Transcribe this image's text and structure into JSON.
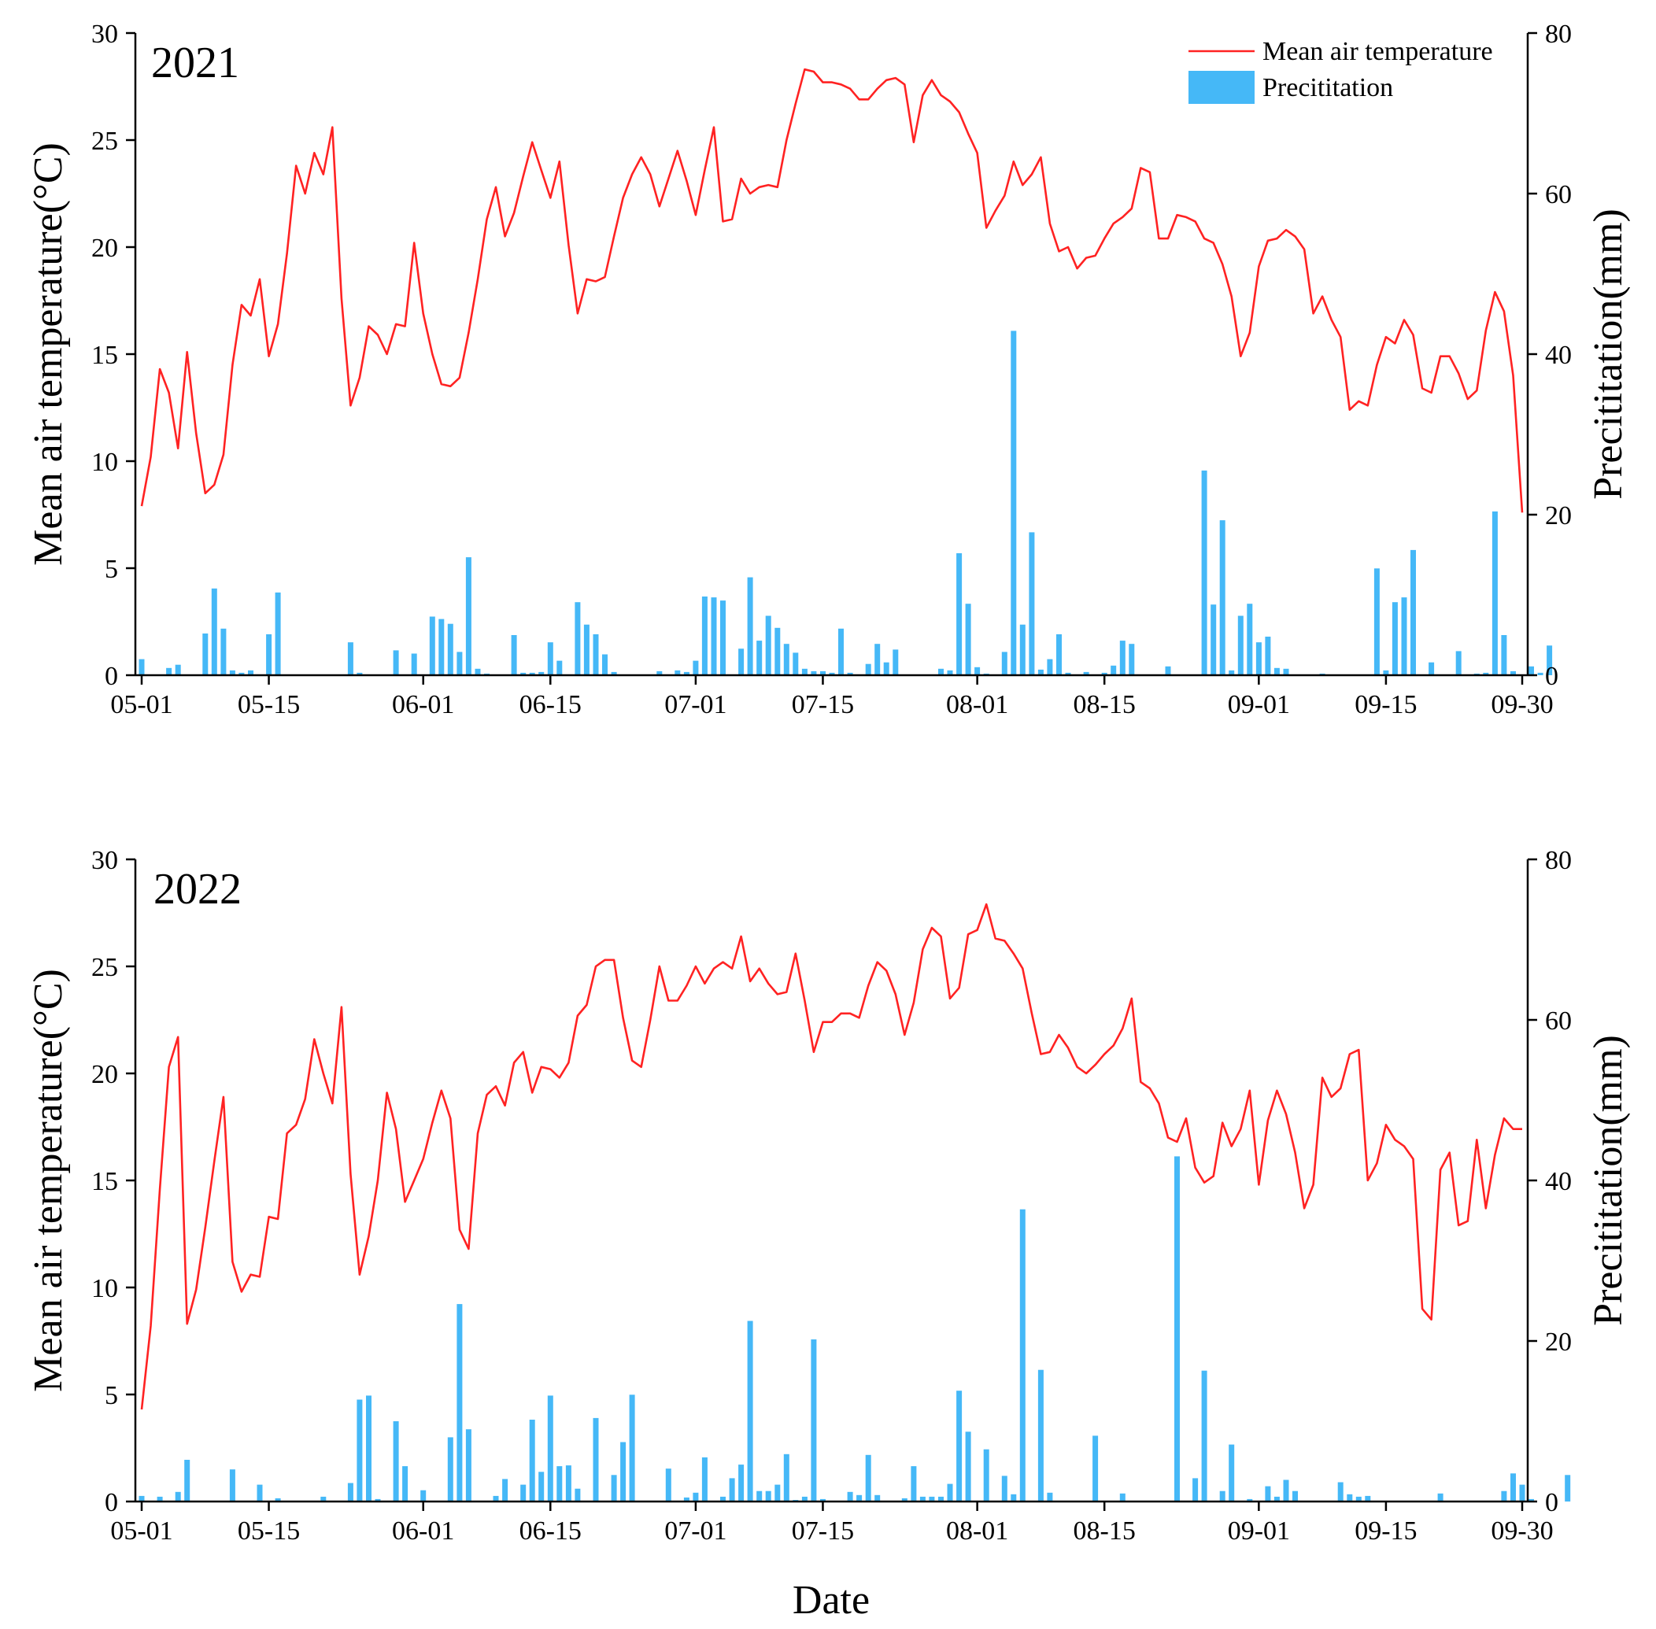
{
  "xlabel": "Date",
  "colors": {
    "temperature": "#ff2222",
    "precipitation": "#45b8f7",
    "axis": "#000000"
  },
  "chart_data": [
    {
      "type": "line+bar",
      "title": "2021",
      "xlabel": "Date",
      "ylabel_left": "Mean air temperature(°C)",
      "ylabel_right": "Precititation(mm)",
      "ylim_left": [
        0,
        30
      ],
      "ylim_right": [
        0,
        80
      ],
      "y_ticks_left": [
        "0",
        "5",
        "10",
        "15",
        "20",
        "25",
        "30"
      ],
      "y_ticks_right": [
        "0",
        "20",
        "40",
        "60",
        "80"
      ],
      "x_tick_labels": [
        "05-01",
        "05-15",
        "06-01",
        "06-15",
        "07-01",
        "07-15",
        "08-01",
        "08-15",
        "09-01",
        "09-15",
        "09-30"
      ],
      "legend": [
        "Mean air temperature",
        "Precititation"
      ],
      "day_start": "05-01",
      "n_days": 153,
      "series": [
        {
          "name": "Mean air temperature",
          "kind": "line",
          "axis": "left",
          "values": [
            7.9,
            10.2,
            14.3,
            13.2,
            10.6,
            15.1,
            11.3,
            8.5,
            8.9,
            10.3,
            14.5,
            17.3,
            16.8,
            18.5,
            14.9,
            16.4,
            19.7,
            23.8,
            22.5,
            24.4,
            23.4,
            25.6,
            17.6,
            12.6,
            13.9,
            16.3,
            15.9,
            15.0,
            16.4,
            16.3,
            20.2,
            16.9,
            15.0,
            13.6,
            13.5,
            13.9,
            16.0,
            18.5,
            21.3,
            22.8,
            20.5,
            21.6,
            23.3,
            24.9,
            23.6,
            22.3,
            24.0,
            20.1,
            16.9,
            18.5,
            18.4,
            18.6,
            20.5,
            22.3,
            23.4,
            24.2,
            23.4,
            21.9,
            23.2,
            24.5,
            23.1,
            21.5,
            23.6,
            25.6,
            21.2,
            21.3,
            23.2,
            22.5,
            22.8,
            22.9,
            22.8,
            25.0,
            26.7,
            28.3,
            28.2,
            27.7,
            27.7,
            27.6,
            27.4,
            26.9,
            26.9,
            27.4,
            27.8,
            27.9,
            27.6,
            24.9,
            27.1,
            27.8,
            27.1,
            26.8,
            26.3,
            25.3,
            24.4,
            20.9,
            21.7,
            22.4,
            24.0,
            22.9,
            23.4,
            24.2,
            21.1,
            19.8,
            20.0,
            19.0,
            19.5,
            19.6,
            20.4,
            21.1,
            21.4,
            21.8,
            23.7,
            23.5,
            20.4,
            20.4,
            21.5,
            21.4,
            21.2,
            20.4,
            20.2,
            19.2,
            17.7,
            14.9,
            16.0,
            19.1,
            20.3,
            20.4,
            20.8,
            20.5,
            19.9,
            16.9,
            17.7,
            16.6,
            15.8,
            12.4,
            12.8,
            12.6,
            14.5,
            15.8,
            15.5,
            16.6,
            15.9,
            13.4,
            13.2,
            14.9,
            14.9,
            14.1,
            12.9,
            13.3,
            16.1,
            17.9,
            17.0,
            14.0,
            7.6
          ]
        },
        {
          "name": "Precititation",
          "kind": "bar",
          "axis": "right",
          "values": [
            2.0,
            0,
            0,
            0.9,
            1.3,
            0,
            0,
            5.2,
            10.8,
            5.8,
            0.6,
            0.3,
            0.6,
            0,
            5.1,
            10.3,
            0,
            0,
            0,
            0.1,
            0,
            0,
            0,
            4.1,
            0.3,
            0,
            0,
            0,
            3.1,
            0,
            2.7,
            0,
            7.3,
            7.0,
            6.4,
            2.9,
            14.7,
            0.8,
            0.2,
            0,
            0,
            5.0,
            0.3,
            0.3,
            0.4,
            4.1,
            1.8,
            0,
            9.1,
            6.3,
            5.1,
            2.6,
            0.4,
            0,
            0,
            0,
            0,
            0.5,
            0,
            0.6,
            0.4,
            1.8,
            9.8,
            9.7,
            9.3,
            0,
            3.3,
            12.2,
            4.3,
            7.4,
            5.9,
            3.9,
            2.8,
            0.8,
            0.5,
            0.5,
            0.3,
            5.8,
            0.3,
            0,
            1.4,
            3.9,
            1.6,
            3.2,
            0,
            0,
            0,
            0,
            0.8,
            0.6,
            15.2,
            8.9,
            1.0,
            0.2,
            0,
            2.9,
            42.9,
            6.3,
            17.8,
            0.7,
            2.0,
            5.1,
            0.3,
            0,
            0.4,
            0,
            0.3,
            1.2,
            4.3,
            3.9,
            0,
            0,
            0,
            1.1,
            0,
            0,
            0.1,
            25.5,
            8.8,
            19.3,
            0.6,
            7.4,
            8.9,
            4.1,
            4.8,
            0.9,
            0.8,
            0,
            0,
            0,
            0.2,
            0,
            0,
            0,
            0,
            0,
            13.3,
            0.6,
            9.1,
            9.7,
            15.6,
            0,
            1.6,
            0,
            0,
            3.0,
            0,
            0.2,
            0.3,
            20.4,
            5.0,
            0.5,
            0,
            1.1,
            0.3,
            3.7,
            0
          ]
        }
      ]
    },
    {
      "type": "line+bar",
      "title": "2022",
      "xlabel": "Date",
      "ylabel_left": "Mean air temperature(°C)",
      "ylabel_right": "Precititation(mm)",
      "ylim_left": [
        0,
        30
      ],
      "ylim_right": [
        0,
        80
      ],
      "y_ticks_left": [
        "0",
        "5",
        "10",
        "15",
        "20",
        "25",
        "30"
      ],
      "y_ticks_right": [
        "0",
        "20",
        "40",
        "60",
        "80"
      ],
      "x_tick_labels": [
        "05-01",
        "05-15",
        "06-01",
        "06-15",
        "07-01",
        "07-15",
        "08-01",
        "08-15",
        "09-01",
        "09-15",
        "09-30"
      ],
      "day_start": "05-01",
      "n_days": 153,
      "series": [
        {
          "name": "Mean air temperature",
          "kind": "line",
          "axis": "left",
          "values": [
            4.3,
            8.2,
            14.6,
            20.3,
            21.7,
            8.3,
            9.9,
            12.8,
            15.9,
            18.9,
            11.2,
            9.8,
            10.6,
            10.5,
            13.3,
            13.2,
            17.2,
            17.6,
            18.8,
            21.6,
            20.0,
            18.6,
            23.1,
            15.3,
            10.6,
            12.4,
            15.0,
            19.1,
            17.4,
            14.0,
            15.0,
            16.0,
            17.7,
            19.2,
            17.9,
            12.7,
            11.8,
            17.2,
            19.0,
            19.4,
            18.5,
            20.5,
            21.0,
            19.1,
            20.3,
            20.2,
            19.8,
            20.5,
            22.7,
            23.2,
            25.0,
            25.3,
            25.3,
            22.6,
            20.6,
            20.3,
            22.5,
            25.0,
            23.4,
            23.4,
            24.1,
            25.0,
            24.2,
            24.9,
            25.2,
            24.9,
            26.4,
            24.3,
            24.9,
            24.2,
            23.7,
            23.8,
            25.6,
            23.4,
            21.0,
            22.4,
            22.4,
            22.8,
            22.8,
            22.6,
            24.1,
            25.2,
            24.8,
            23.7,
            21.8,
            23.3,
            25.8,
            26.8,
            26.4,
            23.5,
            24.0,
            26.5,
            26.7,
            27.9,
            26.3,
            26.2,
            25.6,
            24.9,
            22.8,
            20.9,
            21.0,
            21.8,
            21.2,
            20.3,
            20.0,
            20.4,
            20.9,
            21.3,
            22.1,
            23.5,
            19.6,
            19.3,
            18.6,
            17.0,
            16.8,
            17.9,
            15.6,
            14.9,
            15.2,
            17.7,
            16.6,
            17.4,
            19.2,
            14.8,
            17.8,
            19.2,
            18.1,
            16.3,
            13.7,
            14.8,
            19.8,
            18.9,
            19.3,
            20.9,
            21.1,
            15.0,
            15.8,
            17.6,
            16.9,
            16.6,
            16.0,
            9.0,
            8.5,
            15.5,
            16.3,
            12.9,
            13.1,
            16.9,
            13.7,
            16.2,
            17.9,
            17.4,
            17.4
          ]
        },
        {
          "name": "Precititation",
          "kind": "bar",
          "axis": "right",
          "values": [
            0.7,
            0,
            0.6,
            0,
            1.2,
            5.2,
            0,
            0,
            0,
            0,
            4.0,
            0,
            0,
            2.1,
            0,
            0.4,
            0,
            0,
            0,
            0,
            0.6,
            0,
            0,
            2.3,
            12.7,
            13.2,
            0.3,
            0,
            10.0,
            4.4,
            0,
            1.4,
            0,
            0,
            8.0,
            24.6,
            9.0,
            0.1,
            0,
            0.7,
            2.8,
            0,
            2.1,
            10.2,
            3.7,
            13.2,
            4.4,
            4.5,
            1.6,
            0,
            10.4,
            0,
            3.3,
            7.4,
            13.3,
            0,
            0,
            0,
            4.1,
            0,
            0.5,
            1.1,
            5.5,
            0.1,
            0.6,
            2.9,
            4.6,
            22.5,
            1.3,
            1.3,
            2.1,
            5.9,
            0.2,
            0.6,
            20.2,
            0.3,
            0,
            0,
            1.2,
            0.8,
            5.8,
            0.8,
            0,
            0,
            0.4,
            4.4,
            0.6,
            0.6,
            0.6,
            2.2,
            13.8,
            8.7,
            0,
            6.5,
            0,
            3.2,
            0.9,
            36.4,
            0,
            16.4,
            1.1,
            0,
            0,
            0,
            0,
            8.2,
            0,
            0,
            1.0,
            0,
            0,
            0,
            0,
            0,
            43.0,
            0,
            2.9,
            16.3,
            0,
            1.3,
            7.1,
            0,
            0.3,
            0,
            1.9,
            0.6,
            2.7,
            1.3,
            0,
            0,
            0,
            0.1,
            2.4,
            0.9,
            0.6,
            0.7,
            0,
            0,
            0,
            0,
            0,
            0,
            0,
            1.0,
            0,
            0,
            0,
            0,
            0,
            0,
            1.3,
            3.5,
            2.1,
            0.3,
            0,
            0,
            0,
            3.3
          ]
        }
      ]
    }
  ]
}
